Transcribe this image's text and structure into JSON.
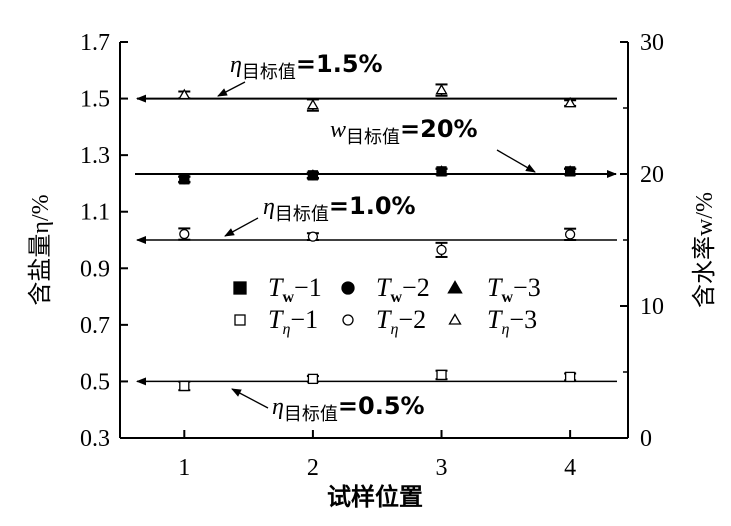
{
  "chart_data": {
    "type": "scatter",
    "xlabel": "试样位置",
    "ylabel_left": "含盐量η/%",
    "ylabel_right": "含水率w/%",
    "x": [
      1,
      2,
      3,
      4
    ],
    "xlim": [
      0.5,
      4.45
    ],
    "ylim_left": [
      0.3,
      1.7
    ],
    "ylim_right": [
      0,
      30
    ],
    "x_ticks": [
      "1",
      "2",
      "3",
      "4"
    ],
    "y_left_ticks": [
      "0.3",
      "0.5",
      "0.7",
      "0.9",
      "1.1",
      "1.3",
      "1.5",
      "1.7"
    ],
    "y_right_ticks": [
      "0",
      "10",
      "20",
      "30"
    ],
    "grid": false,
    "legend_position": "center",
    "series": [
      {
        "name": "Tw-1",
        "axis": "right",
        "marker": "filled-square",
        "values": [
          19.6,
          19.9,
          20.2,
          20.2
        ],
        "error": [
          0.2,
          0.2,
          0.2,
          0.2
        ]
      },
      {
        "name": "Tw-2",
        "axis": "right",
        "marker": "filled-circle",
        "values": [
          19.6,
          19.9,
          20.2,
          20.2
        ],
        "error": [
          0.2,
          0.2,
          0.2,
          0.2
        ]
      },
      {
        "name": "Tw-3",
        "axis": "right",
        "marker": "filled-triangle",
        "values": [
          19.6,
          19.9,
          20.2,
          20.2
        ],
        "error": [
          0.2,
          0.2,
          0.2,
          0.2
        ]
      },
      {
        "name": "Tη-1",
        "axis": "left",
        "marker": "open-square",
        "values": [
          0.484,
          0.509,
          0.523,
          0.516
        ],
        "error": [
          0.015,
          0.01,
          0.015,
          0.012
        ]
      },
      {
        "name": "Tη-2",
        "axis": "left",
        "marker": "open-circle",
        "values": [
          1.021,
          1.012,
          0.965,
          1.02
        ],
        "error": [
          0.02,
          0.012,
          0.025,
          0.02
        ]
      },
      {
        "name": "Tη-3",
        "axis": "left",
        "marker": "open-triangle",
        "values": [
          1.513,
          1.477,
          1.53,
          1.484
        ],
        "error": [
          0.012,
          0.02,
          0.02,
          0.01
        ]
      }
    ],
    "legend": [
      {
        "base": "T",
        "sub": "w",
        "suffix": "−1",
        "marker": "filled-square"
      },
      {
        "base": "T",
        "sub": "w",
        "suffix": "−2",
        "marker": "filled-circle"
      },
      {
        "base": "T",
        "sub": "w",
        "suffix": "−3",
        "marker": "filled-triangle"
      },
      {
        "base": "T",
        "sub": "η",
        "suffix": "−1",
        "marker": "open-square"
      },
      {
        "base": "T",
        "sub": "η",
        "suffix": "−2",
        "marker": "open-circle"
      },
      {
        "base": "T",
        "sub": "η",
        "suffix": "−3",
        "marker": "open-triangle"
      }
    ],
    "reference_lines": [
      {
        "axis": "left",
        "value": 1.5,
        "var": "η",
        "sub": "目标值",
        "text": "=1.5%"
      },
      {
        "axis": "right",
        "value": 20,
        "var": "w",
        "sub": "目标值",
        "text": "=20%"
      },
      {
        "axis": "left",
        "value": 1.0,
        "var": "η",
        "sub": "目标值",
        "text": "=1.0%"
      },
      {
        "axis": "left",
        "value": 0.5,
        "var": "η",
        "sub": "目标值",
        "text": "=0.5%"
      }
    ]
  }
}
